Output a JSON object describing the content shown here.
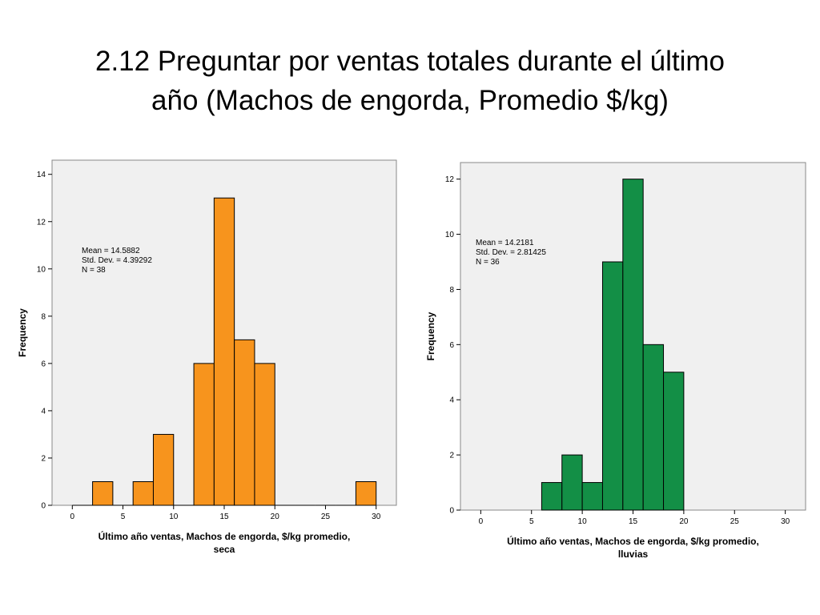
{
  "slide": {
    "title_line1": "2.12 Preguntar por ventas totales durante el último",
    "title_line2": "año (Machos de engorda, Promedio $/kg)"
  },
  "chart_data": [
    {
      "type": "bar",
      "subtype": "histogram",
      "bar_color": "#f7941d",
      "xlabel": [
        "Último año ventas, Machos de engorda, $/kg promedio,",
        "seca"
      ],
      "ylabel": "Frequency",
      "xlim": [
        -2,
        32
      ],
      "ylim": [
        0,
        14.6
      ],
      "x_ticks": [
        0,
        5,
        10,
        15,
        20,
        25,
        30
      ],
      "y_ticks": [
        0,
        2,
        4,
        6,
        8,
        10,
        12,
        14
      ],
      "grid": false,
      "stats": [
        "Mean = 14.5882",
        "Std. Dev. = 4.39292",
        "N = 38"
      ],
      "bins": [
        {
          "start": 0,
          "end": 2,
          "value": 0
        },
        {
          "start": 2,
          "end": 4,
          "value": 1
        },
        {
          "start": 4,
          "end": 6,
          "value": 0
        },
        {
          "start": 6,
          "end": 8,
          "value": 1
        },
        {
          "start": 8,
          "end": 10,
          "value": 3
        },
        {
          "start": 10,
          "end": 12,
          "value": 0
        },
        {
          "start": 12,
          "end": 14,
          "value": 6
        },
        {
          "start": 14,
          "end": 16,
          "value": 13
        },
        {
          "start": 16,
          "end": 18,
          "value": 7
        },
        {
          "start": 18,
          "end": 20,
          "value": 6
        },
        {
          "start": 20,
          "end": 22,
          "value": 0
        },
        {
          "start": 22,
          "end": 24,
          "value": 0
        },
        {
          "start": 24,
          "end": 26,
          "value": 0
        },
        {
          "start": 26,
          "end": 28,
          "value": 0
        },
        {
          "start": 28,
          "end": 30,
          "value": 1
        }
      ]
    },
    {
      "type": "bar",
      "subtype": "histogram",
      "bar_color": "#138f46",
      "xlabel": [
        "Último año ventas, Machos de engorda, $/kg promedio,",
        "lluvias"
      ],
      "ylabel": "Frequency",
      "xlim": [
        -2,
        32
      ],
      "ylim": [
        0,
        12.6
      ],
      "x_ticks": [
        0,
        5,
        10,
        15,
        20,
        25,
        30
      ],
      "y_ticks": [
        0,
        2,
        4,
        6,
        8,
        10,
        12
      ],
      "grid": false,
      "stats": [
        "Mean = 14.2181",
        "Std. Dev. = 2.81425",
        "N = 36"
      ],
      "bins": [
        {
          "start": 6,
          "end": 8,
          "value": 1
        },
        {
          "start": 8,
          "end": 10,
          "value": 2
        },
        {
          "start": 10,
          "end": 12,
          "value": 1
        },
        {
          "start": 12,
          "end": 14,
          "value": 9
        },
        {
          "start": 14,
          "end": 16,
          "value": 12
        },
        {
          "start": 16,
          "end": 18,
          "value": 6
        },
        {
          "start": 18,
          "end": 20,
          "value": 5
        }
      ]
    }
  ]
}
